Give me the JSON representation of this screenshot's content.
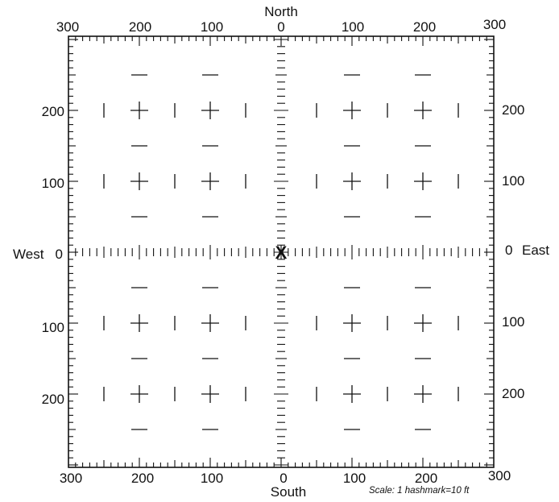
{
  "compass": {
    "north": "North",
    "south": "South",
    "west": "West",
    "east": "East"
  },
  "top_labels": [
    "300",
    "200",
    "100",
    "0",
    "100",
    "200",
    "300"
  ],
  "bottom_labels": [
    "300",
    "200",
    "100",
    "0",
    "100",
    "200",
    "300"
  ],
  "left_labels": [
    "200",
    "100",
    "0",
    "100",
    "200"
  ],
  "right_labels": [
    "200",
    "100",
    "0",
    "100",
    "200"
  ],
  "scale_note": "Scale: 1 hashmark=10 ft",
  "origin_marker": "X",
  "colors": {
    "ink": "#111111",
    "background": "#ffffff"
  }
}
